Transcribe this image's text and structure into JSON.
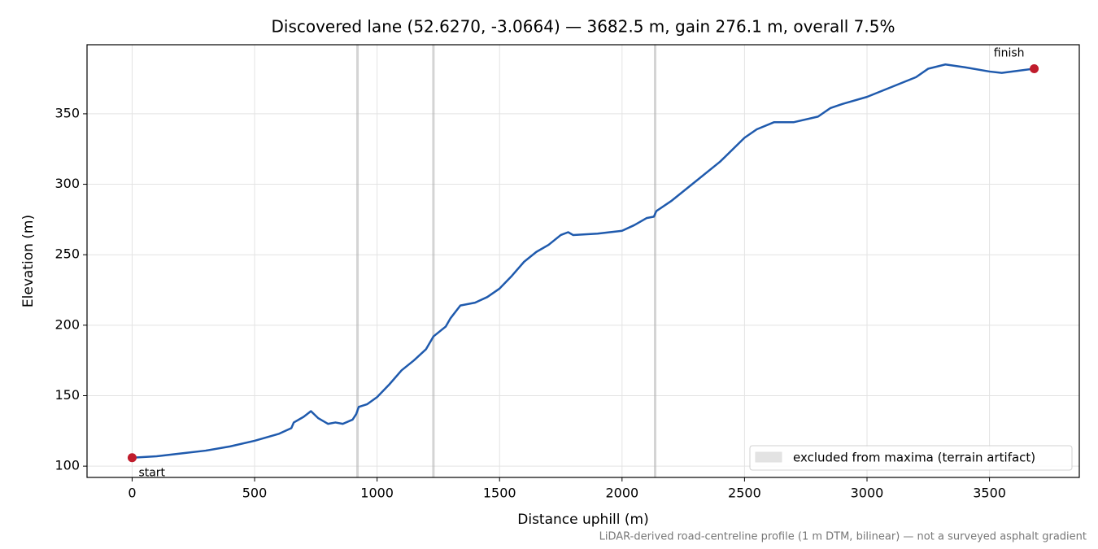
{
  "chart_data": {
    "type": "line",
    "title": "Discovered lane (52.6270, -3.0664) — 3682.5 m, gain 276.1 m, overall 7.5%",
    "xlabel": "Distance uphill (m)",
    "ylabel": "Elevation (m)",
    "footnote": "LiDAR-derived road-centreline profile (1 m DTM, bilinear) — not a surveyed asphalt gradient",
    "xlim": [
      -184.1,
      3866.6
    ],
    "ylim": [
      92,
      399
    ],
    "xticks": [
      0,
      500,
      1000,
      1500,
      2000,
      2500,
      3000,
      3500
    ],
    "yticks": [
      100,
      150,
      200,
      250,
      300,
      350
    ],
    "grid": true,
    "series": [
      {
        "name": "Elevation",
        "color": "#1f5aad",
        "x": [
          0,
          100,
          200,
          300,
          400,
          500,
          600,
          650,
          660,
          700,
          730,
          760,
          800,
          830,
          860,
          900,
          915,
          925,
          960,
          1000,
          1050,
          1100,
          1150,
          1200,
          1230,
          1280,
          1300,
          1340,
          1400,
          1450,
          1500,
          1550,
          1600,
          1650,
          1700,
          1750,
          1780,
          1800,
          1900,
          1950,
          2000,
          2050,
          2100,
          2130,
          2140,
          2200,
          2300,
          2400,
          2500,
          2550,
          2620,
          2700,
          2800,
          2850,
          2900,
          3000,
          3100,
          3200,
          3250,
          3320,
          3400,
          3500,
          3550,
          3682.5
        ],
        "values": [
          106,
          107,
          109,
          111,
          114,
          118,
          123,
          127,
          131,
          135,
          139,
          134,
          130,
          131,
          130,
          133,
          137,
          142,
          144,
          149,
          158,
          168,
          175,
          183,
          192,
          199,
          205,
          214,
          216,
          220,
          226,
          235,
          245,
          252,
          257,
          264,
          266,
          264,
          265,
          266,
          267,
          271,
          276,
          277,
          281,
          288,
          302,
          316,
          333,
          339,
          344,
          344,
          348,
          354,
          357,
          362,
          369,
          376,
          382,
          385,
          383,
          380,
          379,
          382
        ]
      }
    ],
    "excluded": {
      "name": "excluded from maxima (terrain artifact)",
      "color": "#b0b0b0",
      "ranges": [
        [
          915,
          925
        ],
        [
          1225,
          1235
        ],
        [
          2130,
          2140
        ]
      ]
    },
    "markers": [
      {
        "label": "start",
        "x": 0,
        "y": 106,
        "color": "#c01c2c"
      },
      {
        "label": "finish",
        "x": 3682.5,
        "y": 382,
        "color": "#c01c2c"
      }
    ],
    "legend": "lower right"
  }
}
